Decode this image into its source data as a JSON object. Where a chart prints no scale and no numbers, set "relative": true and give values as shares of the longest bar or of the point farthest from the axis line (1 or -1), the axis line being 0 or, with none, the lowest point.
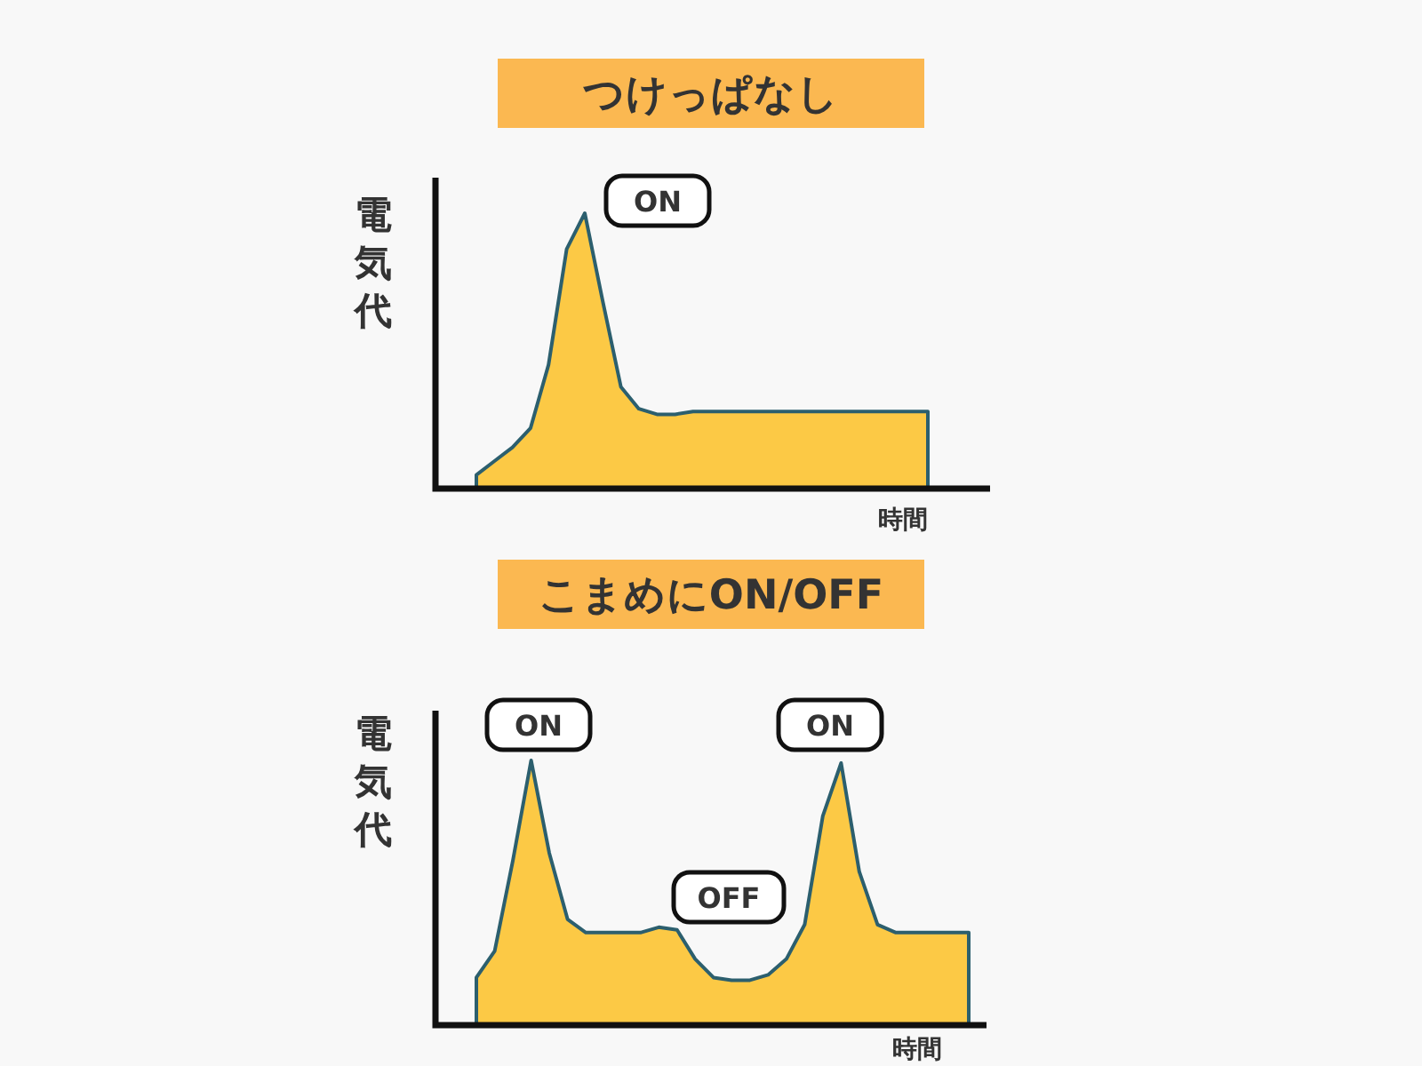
{
  "chart_data": [
    {
      "type": "area",
      "title": "つけっぱなし",
      "xlabel": "時間",
      "ylabel": "電気代",
      "relative": true,
      "categories": [
        null,
        null,
        null,
        null,
        null,
        null,
        null,
        null,
        null,
        null,
        null,
        null,
        null,
        null,
        null,
        null,
        null,
        null,
        null,
        null,
        null,
        null,
        null,
        null,
        null,
        null
      ],
      "series": [
        {
          "color": "#fcc945",
          "values": [
            0.05,
            0.1,
            0.15,
            0.22,
            0.45,
            0.87,
            1.0,
            0.68,
            0.37,
            0.29,
            0.27,
            0.27,
            0.28,
            0.28,
            0.28,
            0.28,
            0.28,
            0.28,
            0.28,
            0.28,
            0.28,
            0.28,
            0.28,
            0.28,
            0.28,
            0.28
          ]
        }
      ],
      "annotations": [
        "ON"
      ]
    },
    {
      "type": "area",
      "title": "こまめにON/OFF",
      "xlabel": "時間",
      "ylabel": "電気代",
      "relative": true,
      "categories": [
        null,
        null,
        null,
        null,
        null,
        null,
        null,
        null,
        null,
        null,
        null,
        null,
        null,
        null,
        null,
        null,
        null,
        null,
        null,
        null,
        null,
        null,
        null,
        null,
        null,
        null,
        null,
        null
      ],
      "series": [
        {
          "color": "#fcc945",
          "values": [
            0.18,
            0.28,
            0.62,
            1.0,
            0.65,
            0.4,
            0.35,
            0.35,
            0.35,
            0.35,
            0.37,
            0.36,
            0.25,
            0.18,
            0.17,
            0.17,
            0.19,
            0.25,
            0.38,
            0.79,
            0.99,
            0.58,
            0.38,
            0.35,
            0.35,
            0.35,
            0.35,
            0.35
          ]
        }
      ],
      "annotations": [
        "ON",
        "OFF",
        "ON"
      ]
    }
  ]
}
